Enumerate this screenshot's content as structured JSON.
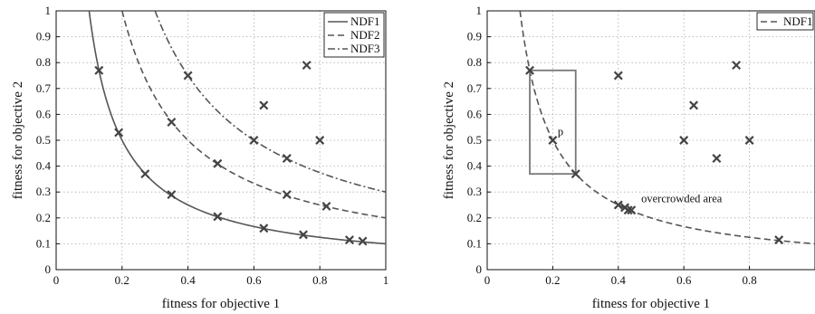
{
  "chart_data": [
    {
      "type": "line",
      "xlabel": "fitness for objective 1",
      "ylabel": "fitness for objective 2",
      "xlim": [
        0,
        1
      ],
      "ylim": [
        0,
        1
      ],
      "xticks": [
        "0",
        "0.2",
        "0.4",
        "0.6",
        "0.8",
        "1"
      ],
      "yticks": [
        "0",
        "0.1",
        "0.2",
        "0.3",
        "0.4",
        "0.5",
        "0.6",
        "0.7",
        "0.8",
        "0.9",
        "1"
      ],
      "grid": true,
      "legend": "top-right",
      "series": [
        {
          "name": "NDF1",
          "style": "solid",
          "curve_k": 0.1,
          "x_start": 0.1
        },
        {
          "name": "NDF2",
          "style": "dashed",
          "curve_k": 0.2,
          "x_start": 0.2
        },
        {
          "name": "NDF3",
          "style": "dashdot",
          "curve_k": 0.3,
          "x_start": 0.3
        }
      ],
      "points": [
        [
          0.13,
          0.77
        ],
        [
          0.19,
          0.53
        ],
        [
          0.27,
          0.37
        ],
        [
          0.35,
          0.29
        ],
        [
          0.49,
          0.205
        ],
        [
          0.63,
          0.16
        ],
        [
          0.75,
          0.135
        ],
        [
          0.89,
          0.115
        ],
        [
          0.93,
          0.11
        ],
        [
          0.35,
          0.57
        ],
        [
          0.49,
          0.41
        ],
        [
          0.7,
          0.29
        ],
        [
          0.82,
          0.245
        ],
        [
          0.4,
          0.75
        ],
        [
          0.6,
          0.5
        ],
        [
          0.7,
          0.43
        ],
        [
          0.8,
          0.5
        ],
        [
          0.63,
          0.635
        ],
        [
          0.76,
          0.79
        ]
      ],
      "colors": {
        "line": "#555555",
        "marker": "#444444"
      }
    },
    {
      "type": "line",
      "xlabel": "fitness for objective 1",
      "ylabel": "fitness for objective 2",
      "xlim": [
        0,
        1
      ],
      "ylim": [
        0,
        1
      ],
      "xticks": [
        "0",
        "0.2",
        "0.4",
        "0.6",
        "0.8"
      ],
      "yticks": [
        "0",
        "0.1",
        "0.2",
        "0.3",
        "0.4",
        "0.5",
        "0.6",
        "0.7",
        "0.8",
        "0.9",
        "1"
      ],
      "grid": true,
      "legend": "top-right",
      "series": [
        {
          "name": "NDF1",
          "style": "dashed",
          "curve_k": 0.1,
          "x_start": 0.1
        }
      ],
      "points": [
        [
          0.13,
          0.77
        ],
        [
          0.2,
          0.5
        ],
        [
          0.27,
          0.37
        ],
        [
          0.4,
          0.75
        ],
        [
          0.4,
          0.25
        ],
        [
          0.42,
          0.24
        ],
        [
          0.43,
          0.23
        ],
        [
          0.44,
          0.23
        ],
        [
          0.6,
          0.5
        ],
        [
          0.63,
          0.635
        ],
        [
          0.7,
          0.43
        ],
        [
          0.76,
          0.79
        ],
        [
          0.8,
          0.5
        ],
        [
          0.89,
          0.115
        ]
      ],
      "box": {
        "x0": 0.13,
        "x1": 0.27,
        "y0": 0.37,
        "y1": 0.77
      },
      "annotations": [
        {
          "text": "p",
          "x": 0.215,
          "y": 0.52
        },
        {
          "text": "overcrowded area",
          "x": 0.47,
          "y": 0.26
        }
      ],
      "colors": {
        "line": "#555555",
        "marker": "#444444",
        "box": "#777777"
      }
    }
  ]
}
